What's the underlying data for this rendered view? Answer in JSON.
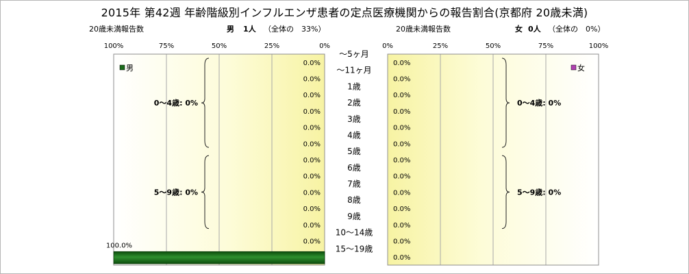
{
  "title": "2015年 第42週 年齢階級別インフルエンザ患者の定点医療機関からの報告割合(京都府 20歳未満)",
  "chart_data": [
    {
      "type": "bar",
      "panel": "male",
      "orientation": "horizontal",
      "x_direction": "right-to-left",
      "axis_header": "20歳未満報告数",
      "summary_label": "男",
      "summary_count": "1人",
      "summary_share": "（全体の　33%）",
      "legend": "男",
      "color": "#1a6b1a",
      "categories": [
        "〜5ヶ月",
        "〜11ヶ月",
        "1歳",
        "2歳",
        "3歳",
        "4歳",
        "5歳",
        "6歳",
        "7歳",
        "8歳",
        "9歳",
        "10〜14歳",
        "15〜19歳"
      ],
      "values": [
        0,
        0,
        0,
        0,
        0,
        0,
        0,
        0,
        0,
        0,
        0,
        0,
        100
      ],
      "value_labels": [
        "0.0%",
        "0.0%",
        "0.0%",
        "0.0%",
        "0.0%",
        "0.0%",
        "0.0%",
        "0.0%",
        "0.0%",
        "0.0%",
        "0.0%",
        "0.0%",
        "100.0%"
      ],
      "xlim": [
        0,
        100
      ],
      "ticks": [
        "100%",
        "75%",
        "50%",
        "25%",
        "0%"
      ],
      "groups": [
        {
          "label": "0〜4歳: 0%",
          "from": 0,
          "to": 5
        },
        {
          "label": "5〜9歳: 0%",
          "from": 6,
          "to": 10
        }
      ],
      "grid": true,
      "legend_position": "top-left"
    },
    {
      "type": "bar",
      "panel": "female",
      "orientation": "horizontal",
      "x_direction": "left-to-right",
      "axis_header": "20歳未満報告数",
      "summary_label": "女",
      "summary_count": "0人",
      "summary_share": "（全体の　0%）",
      "legend": "女",
      "color": "#b040b0",
      "categories": [
        "〜5ヶ月",
        "〜11ヶ月",
        "1歳",
        "2歳",
        "3歳",
        "4歳",
        "5歳",
        "6歳",
        "7歳",
        "8歳",
        "9歳",
        "10〜14歳",
        "15〜19歳"
      ],
      "values": [
        0,
        0,
        0,
        0,
        0,
        0,
        0,
        0,
        0,
        0,
        0,
        0,
        0
      ],
      "value_labels": [
        "0.0%",
        "0.0%",
        "0.0%",
        "0.0%",
        "0.0%",
        "0.0%",
        "0.0%",
        "0.0%",
        "0.0%",
        "0.0%",
        "0.0%",
        "0.0%",
        "0.0%"
      ],
      "xlim": [
        0,
        100
      ],
      "ticks": [
        "0%",
        "25%",
        "50%",
        "75%",
        "100%"
      ],
      "groups": [
        {
          "label": "0〜4歳: 0%",
          "from": 0,
          "to": 5
        },
        {
          "label": "5〜9歳: 0%",
          "from": 6,
          "to": 10
        }
      ],
      "grid": true,
      "legend_position": "top-right"
    }
  ]
}
